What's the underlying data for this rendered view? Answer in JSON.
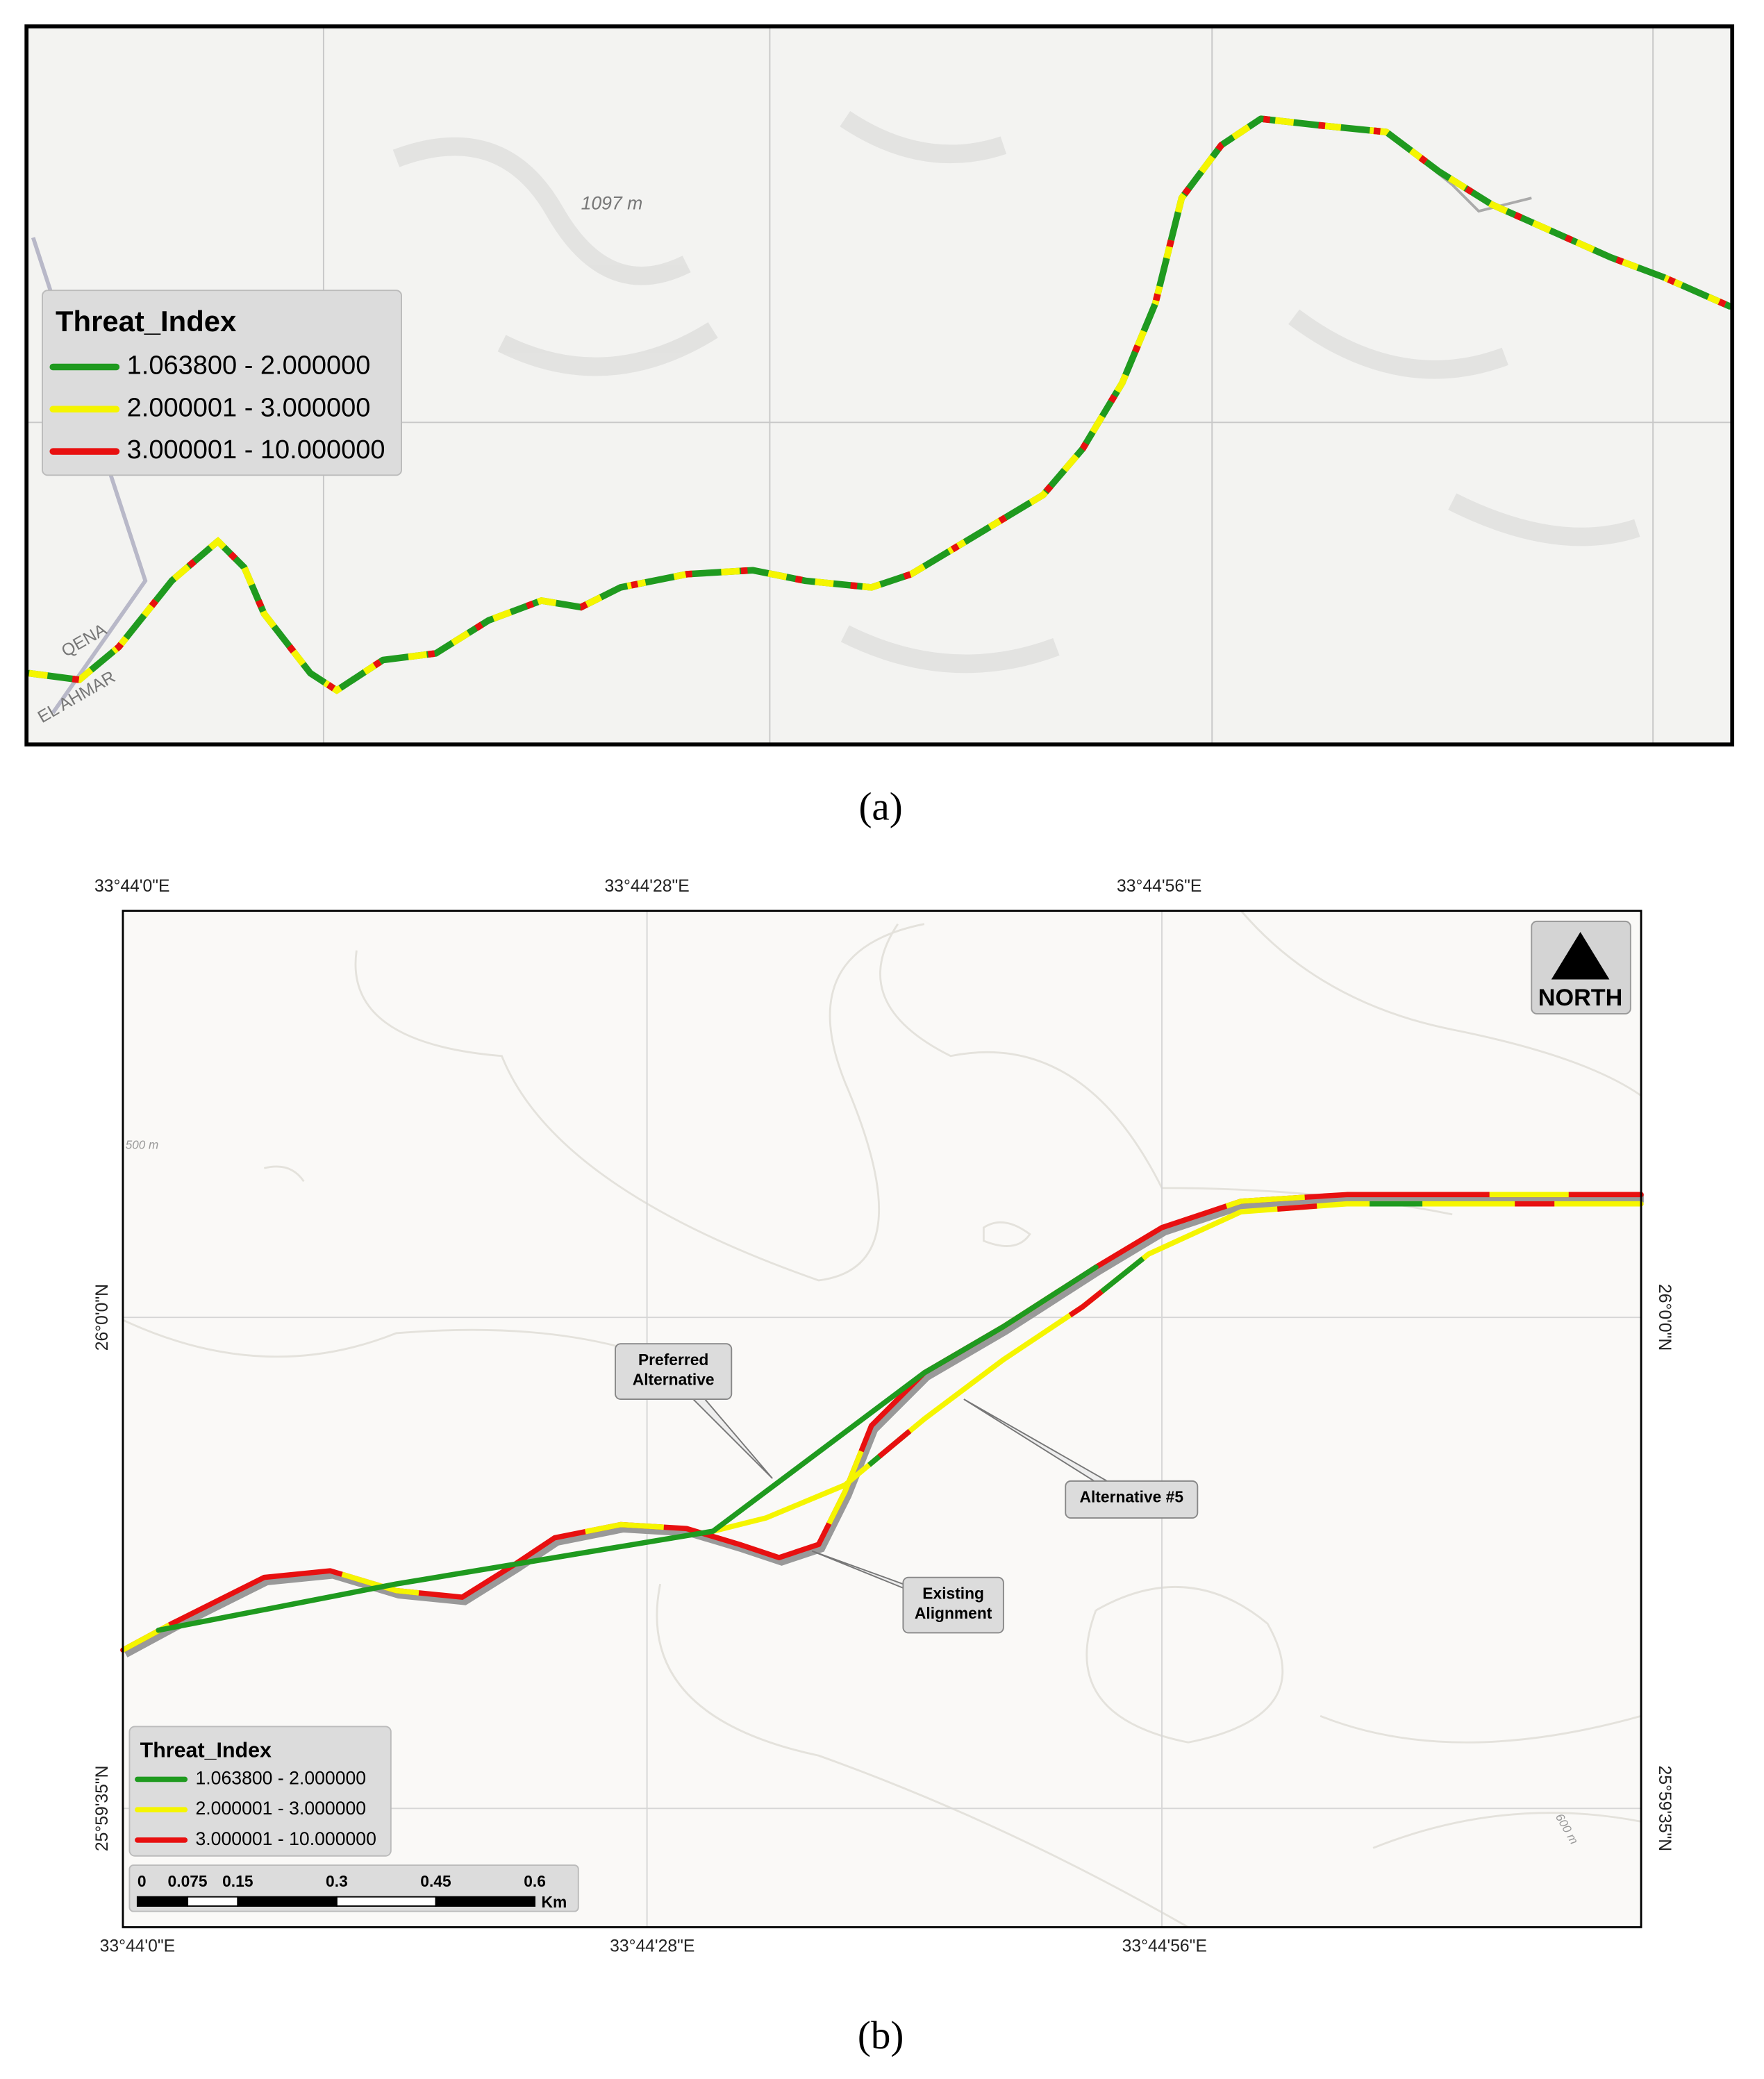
{
  "panel_a": {
    "label": "(a)",
    "elevation_label": "1097 m",
    "place_labels": [
      "QENA",
      "EL AHMAR"
    ],
    "legend": {
      "title": "Threat_Index",
      "items": [
        {
          "label": "1.063800 - 2.000000",
          "color": "#1f9a1f"
        },
        {
          "label": "2.000001 - 3.000000",
          "color": "#f5f500"
        },
        {
          "label": "3.000001 - 10.000000",
          "color": "#e81010"
        }
      ]
    }
  },
  "panel_b": {
    "label": "(b)",
    "top_lon_labels": [
      "33°44'0\"E",
      "33°44'28\"E",
      "33°44'56\"E"
    ],
    "bottom_lon_labels": [
      "33°44'0\"E",
      "33°44'28\"E",
      "33°44'56\"E"
    ],
    "left_lat_labels": [
      "26°0'0\"N",
      "25°59'35\"N"
    ],
    "right_lat_labels": [
      "26°0'0\"N",
      "25°59'35\"N"
    ],
    "north": "NORTH",
    "contour_labels": [
      "500 m",
      "600 m"
    ],
    "callouts": [
      {
        "lines": [
          "Preferred",
          "Alternative"
        ]
      },
      {
        "lines": [
          "Alternative #5"
        ]
      },
      {
        "lines": [
          "Existing",
          "Alignment"
        ]
      }
    ],
    "legend": {
      "title": "Threat_Index",
      "items": [
        {
          "label": "1.063800 - 2.000000",
          "color": "#1f9a1f"
        },
        {
          "label": "2.000001 - 3.000000",
          "color": "#f5f500"
        },
        {
          "label": "3.000001 - 10.000000",
          "color": "#e81010"
        }
      ]
    },
    "scale_bar": {
      "ticks": [
        0,
        0.075,
        0.15,
        0.3,
        0.45,
        0.6
      ],
      "unit": "Km"
    }
  }
}
